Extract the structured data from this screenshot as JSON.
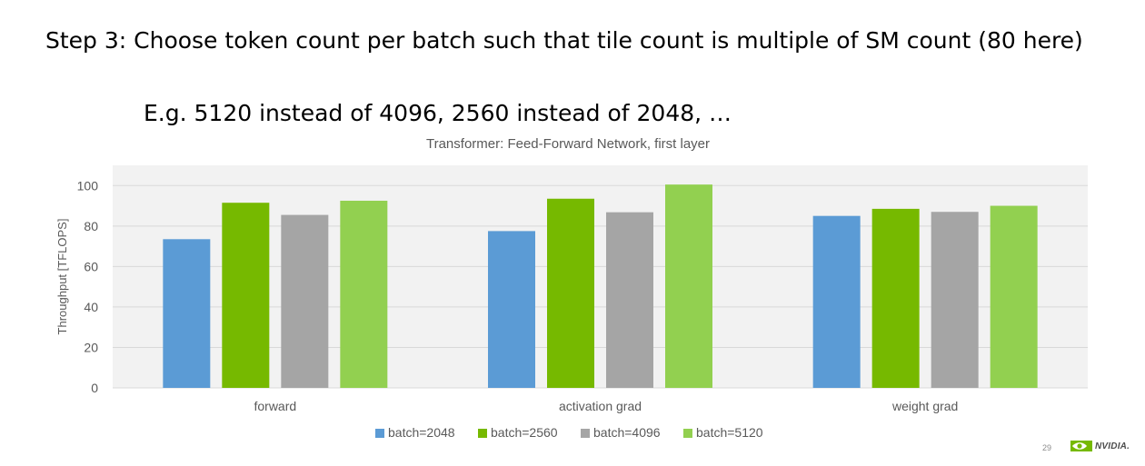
{
  "slide": {
    "heading": "Step 3: Choose token count per batch such that tile count is multiple of SM count (80 here)",
    "subheading": "E.g. 5120 instead of 4096, 2560 instead of 2048, …",
    "page_number": "29",
    "logo_text": "NVIDIA."
  },
  "colors": {
    "plot_background": "#f2f2f2",
    "gridline": "#d9d9d9"
  },
  "chart_data": {
    "type": "bar",
    "title": "Transformer: Feed-Forward Network, first layer",
    "xlabel": "",
    "ylabel": "Throughput [TFLOPS]",
    "ylim": [
      0,
      110
    ],
    "yticks": [
      0,
      20,
      40,
      60,
      80,
      100
    ],
    "grid": true,
    "legend_position": "bottom",
    "categories": [
      "forward",
      "activation grad",
      "weight grad"
    ],
    "series": [
      {
        "name": "batch=2048",
        "color": "#5b9bd5",
        "values": [
          73.5,
          77.5,
          85
        ]
      },
      {
        "name": "batch=2560",
        "color": "#76b900",
        "values": [
          91.5,
          93.5,
          88.5
        ]
      },
      {
        "name": "batch=4096",
        "color": "#a5a5a5",
        "values": [
          85.5,
          86.8,
          87
        ]
      },
      {
        "name": "batch=5120",
        "color": "#92d050",
        "values": [
          92.5,
          100.5,
          90
        ]
      }
    ]
  }
}
